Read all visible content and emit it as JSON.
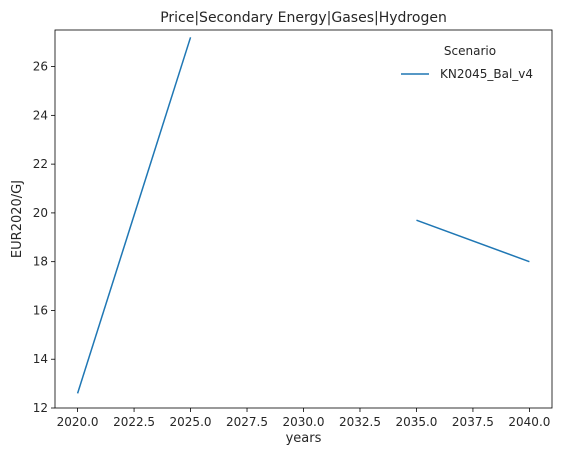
{
  "chart_data": {
    "type": "line",
    "title": "Price|Secondary Energy|Gases|Hydrogen",
    "xlabel": "years",
    "ylabel": "EUR2020/GJ",
    "xlim": [
      2019.0,
      2041.0
    ],
    "ylim": [
      12.0,
      27.5
    ],
    "xticks": [
      2020.0,
      2022.5,
      2025.0,
      2027.5,
      2030.0,
      2032.5,
      2035.0,
      2037.5,
      2040.0
    ],
    "xtick_labels": [
      "2020.0",
      "2022.5",
      "2025.0",
      "2027.5",
      "2030.0",
      "2032.5",
      "2035.0",
      "2037.5",
      "2040.0"
    ],
    "yticks": [
      12,
      14,
      16,
      18,
      20,
      22,
      24,
      26
    ],
    "ytick_labels": [
      "12",
      "14",
      "16",
      "18",
      "20",
      "22",
      "24",
      "26"
    ],
    "grid": false,
    "legend": {
      "title": "Scenario",
      "position": "top-right"
    },
    "series": [
      {
        "name": "KN2045_Bal_v4",
        "color": "#1f77b4",
        "x": [
          2020,
          2025,
          2030,
          2035,
          2040
        ],
        "y": [
          12.6,
          27.2,
          null,
          19.7,
          18.0
        ]
      }
    ]
  }
}
